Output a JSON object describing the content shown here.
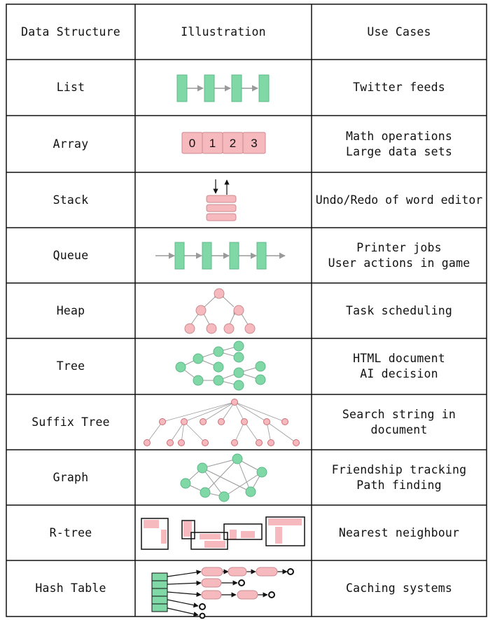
{
  "headers": [
    "Data Structure",
    "Illustration",
    "Use Cases"
  ],
  "rows": [
    {
      "name": "List",
      "icon": "list-illustration",
      "use_lines": [
        "Twitter feeds"
      ]
    },
    {
      "name": "Array",
      "icon": "array-illustration",
      "use_lines": [
        "Math operations",
        "Large data sets"
      ],
      "array_values": [
        "0",
        "1",
        "2",
        "3"
      ]
    },
    {
      "name": "Stack",
      "icon": "stack-illustration",
      "use_lines": [
        "Undo/Redo of word editor"
      ]
    },
    {
      "name": "Queue",
      "icon": "queue-illustration",
      "use_lines": [
        "Printer jobs",
        "User actions in game"
      ]
    },
    {
      "name": "Heap",
      "icon": "heap-illustration",
      "use_lines": [
        "Task scheduling"
      ]
    },
    {
      "name": "Tree",
      "icon": "tree-illustration",
      "use_lines": [
        "HTML document",
        "AI decision"
      ]
    },
    {
      "name": "Suffix Tree",
      "icon": "suffix-tree-illustration",
      "use_lines": [
        "Search string in",
        "document"
      ]
    },
    {
      "name": "Graph",
      "icon": "graph-illustration",
      "use_lines": [
        "Friendship tracking",
        "Path finding"
      ]
    },
    {
      "name": "R-tree",
      "icon": "r-tree-illustration",
      "use_lines": [
        "Nearest neighbour"
      ]
    },
    {
      "name": "Hash Table",
      "icon": "hash-table-illustration",
      "use_lines": [
        "Caching systems"
      ]
    }
  ],
  "colors": {
    "green": "#7fd8a6",
    "pink": "#f6b9bd",
    "arrow": "#9a9a9a",
    "border": "#111111"
  }
}
